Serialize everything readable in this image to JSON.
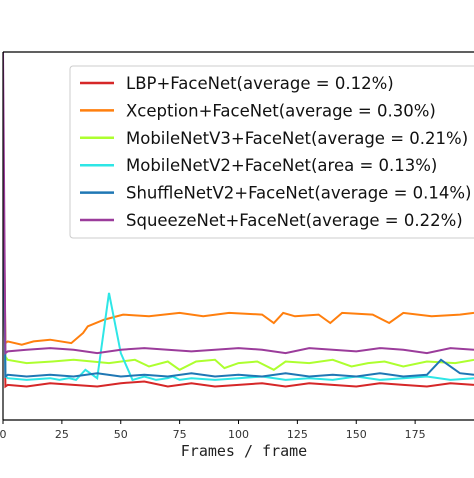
{
  "chart_data": {
    "type": "line",
    "title": "",
    "xlabel": "Frames / frame",
    "ylabel": "",
    "xlim": [
      0,
      200
    ],
    "xticks": [
      "0",
      "25",
      "50",
      "75",
      "100",
      "125",
      "150",
      "175"
    ],
    "grid": false,
    "legend_position": "top-right",
    "series": [
      {
        "name": "LBP+FaceNet(average = 0.12%)",
        "color": "#d62728",
        "x": [
          0,
          1,
          2,
          10,
          20,
          30,
          40,
          50,
          60,
          70,
          80,
          90,
          100,
          110,
          120,
          130,
          140,
          150,
          160,
          170,
          180,
          190,
          200
        ],
        "y": [
          0.82,
          0.1,
          0.105,
          0.1,
          0.11,
          0.105,
          0.1,
          0.11,
          0.115,
          0.1,
          0.11,
          0.1,
          0.105,
          0.11,
          0.1,
          0.11,
          0.105,
          0.1,
          0.11,
          0.105,
          0.1,
          0.11,
          0.105
        ]
      },
      {
        "name": "Xception+FaceNet(average = 0.30%)",
        "color": "#ff7f0e",
        "x": [
          0,
          1,
          2,
          8,
          13,
          20,
          29,
          34,
          36,
          43,
          51,
          62,
          75,
          85,
          96,
          110,
          115,
          119,
          124,
          134,
          139,
          144,
          157,
          164,
          170,
          182,
          194,
          200
        ],
        "y": [
          0.82,
          0.23,
          0.235,
          0.225,
          0.235,
          0.24,
          0.23,
          0.26,
          0.28,
          0.3,
          0.315,
          0.31,
          0.32,
          0.31,
          0.32,
          0.315,
          0.29,
          0.32,
          0.31,
          0.315,
          0.29,
          0.32,
          0.315,
          0.29,
          0.32,
          0.31,
          0.315,
          0.32
        ]
      },
      {
        "name": "MobileNetV3+FaceNet(average = 0.21%)",
        "color": "#adff2f",
        "x": [
          0,
          1,
          2,
          10,
          21,
          30,
          45,
          56,
          62,
          70,
          75,
          82,
          90,
          94,
          100,
          108,
          115,
          120,
          130,
          140,
          148,
          155,
          162,
          170,
          180,
          192,
          200
        ],
        "y": [
          0.82,
          0.19,
          0.18,
          0.17,
          0.175,
          0.18,
          0.17,
          0.18,
          0.16,
          0.175,
          0.15,
          0.175,
          0.18,
          0.155,
          0.17,
          0.175,
          0.15,
          0.175,
          0.17,
          0.18,
          0.16,
          0.17,
          0.175,
          0.16,
          0.175,
          0.17,
          0.18
        ]
      },
      {
        "name": "MobileNetV2+FaceNet(area = 0.13%)",
        "color": "#2ee6e6",
        "x": [
          0,
          1,
          2,
          10,
          20,
          24,
          28,
          31,
          35,
          40,
          45,
          50,
          55,
          60,
          65,
          70,
          72,
          75,
          80,
          90,
          100,
          110,
          120,
          130,
          140,
          150,
          160,
          170,
          180,
          190,
          200
        ],
        "y": [
          0.82,
          0.13,
          0.125,
          0.12,
          0.125,
          0.12,
          0.125,
          0.12,
          0.15,
          0.125,
          0.38,
          0.2,
          0.12,
          0.13,
          0.12,
          0.125,
          0.13,
          0.12,
          0.125,
          0.12,
          0.125,
          0.13,
          0.12,
          0.125,
          0.12,
          0.13,
          0.12,
          0.125,
          0.13,
          0.12,
          0.125
        ]
      },
      {
        "name": "ShuffleNetV2+FaceNet(average = 0.14%)",
        "color": "#1f77b4",
        "x": [
          0,
          1,
          2,
          10,
          20,
          30,
          40,
          50,
          60,
          70,
          80,
          90,
          100,
          110,
          120,
          130,
          140,
          150,
          160,
          170,
          180,
          186,
          194,
          200
        ],
        "y": [
          0.82,
          0.13,
          0.135,
          0.13,
          0.135,
          0.13,
          0.14,
          0.13,
          0.135,
          0.13,
          0.14,
          0.13,
          0.135,
          0.13,
          0.14,
          0.13,
          0.135,
          0.13,
          0.14,
          0.13,
          0.135,
          0.18,
          0.14,
          0.135
        ]
      },
      {
        "name": "SqueezeNet+FaceNet(average = 0.22%)",
        "color": "#9b3c9b",
        "x": [
          0,
          1,
          2,
          10,
          20,
          30,
          40,
          50,
          60,
          70,
          80,
          90,
          100,
          110,
          120,
          130,
          140,
          150,
          160,
          170,
          180,
          190,
          200
        ],
        "y": [
          1.1,
          0.2,
          0.205,
          0.21,
          0.215,
          0.21,
          0.2,
          0.21,
          0.215,
          0.21,
          0.205,
          0.21,
          0.215,
          0.21,
          0.2,
          0.215,
          0.21,
          0.205,
          0.215,
          0.21,
          0.2,
          0.215,
          0.21
        ]
      }
    ]
  }
}
